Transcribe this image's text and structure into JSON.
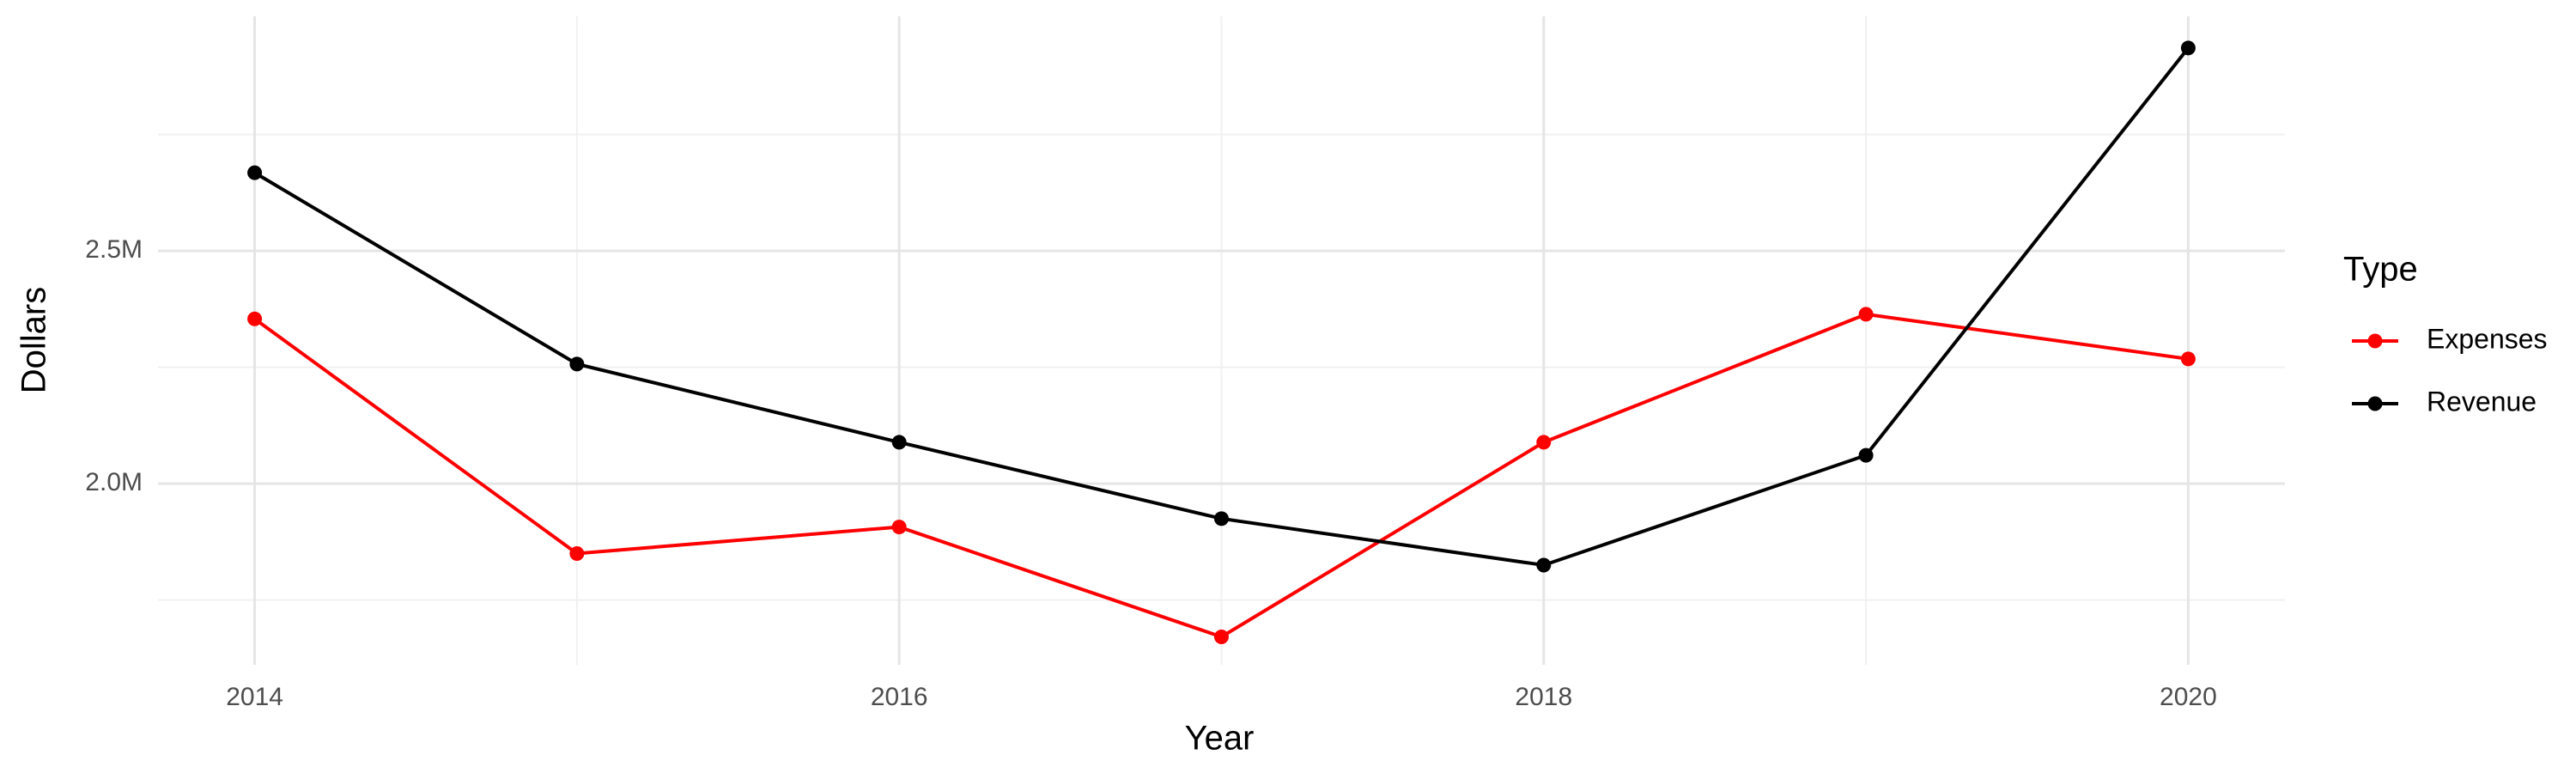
{
  "chart_data": {
    "type": "line",
    "x_label": "Year",
    "y_label": "Dollars",
    "legend_title": "Type",
    "legend_position": "right",
    "grid": true,
    "x": [
      2014,
      2015,
      2016,
      2017,
      2018,
      2019,
      2020
    ],
    "series": [
      {
        "name": "Expenses",
        "color": "#ff0000",
        "values": [
          2354000,
          1850000,
          1907000,
          1671000,
          2089000,
          2364000,
          2268000
        ]
      },
      {
        "name": "Revenue",
        "color": "#000000",
        "values": [
          2668000,
          2257000,
          2089000,
          1925000,
          1825000,
          2061000,
          2936000
        ]
      }
    ],
    "xlim": [
      2013.7,
      2020.3
    ],
    "xticks": [
      2014,
      2016,
      2018,
      2020
    ],
    "x_minor_ticks": [
      2015,
      2017,
      2019
    ],
    "ylim": [
      1611000,
      3004000
    ],
    "yticks": [
      {
        "value": 2000000,
        "label": "2.0M"
      },
      {
        "value": 2500000,
        "label": "2.5M"
      }
    ],
    "y_minor_ticks": [
      1750000,
      2250000,
      2750000
    ]
  }
}
